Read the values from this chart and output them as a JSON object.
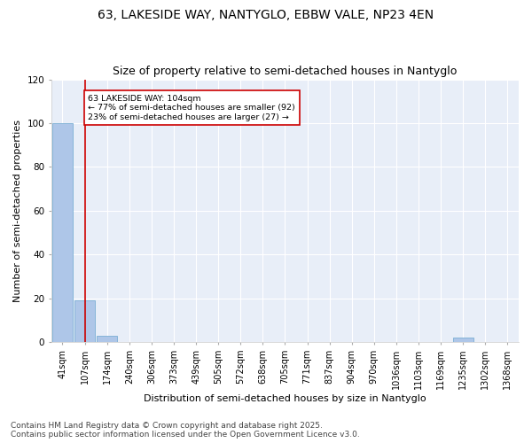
{
  "title": "63, LAKESIDE WAY, NANTYGLO, EBBW VALE, NP23 4EN",
  "subtitle": "Size of property relative to semi-detached houses in Nantyglo",
  "xlabel": "Distribution of semi-detached houses by size in Nantyglo",
  "ylabel": "Number of semi-detached properties",
  "footer_line1": "Contains HM Land Registry data © Crown copyright and database right 2025.",
  "footer_line2": "Contains public sector information licensed under the Open Government Licence v3.0.",
  "bar_labels": [
    "41sqm",
    "107sqm",
    "174sqm",
    "240sqm",
    "306sqm",
    "373sqm",
    "439sqm",
    "505sqm",
    "572sqm",
    "638sqm",
    "705sqm",
    "771sqm",
    "837sqm",
    "904sqm",
    "970sqm",
    "1036sqm",
    "1103sqm",
    "1169sqm",
    "1235sqm",
    "1302sqm",
    "1368sqm"
  ],
  "bar_values": [
    100,
    19,
    3,
    0,
    0,
    0,
    0,
    0,
    0,
    0,
    0,
    0,
    0,
    0,
    0,
    0,
    0,
    0,
    2,
    0,
    0
  ],
  "bar_color": "#aec6e8",
  "bar_edge_color": "#7aafd4",
  "annotation_text": "63 LAKESIDE WAY: 104sqm\n← 77% of semi-detached houses are smaller (92)\n23% of semi-detached houses are larger (27) →",
  "annotation_box_color": "#ffffff",
  "annotation_border_color": "#cc0000",
  "red_line_x": 1,
  "red_line_color": "#cc0000",
  "ylim": [
    0,
    120
  ],
  "yticks": [
    0,
    20,
    40,
    60,
    80,
    100,
    120
  ],
  "plot_bg_color": "#e8eef8",
  "fig_bg_color": "#ffffff",
  "title_fontsize": 10,
  "subtitle_fontsize": 9,
  "axis_label_fontsize": 8,
  "tick_fontsize": 7,
  "footer_fontsize": 6.5
}
